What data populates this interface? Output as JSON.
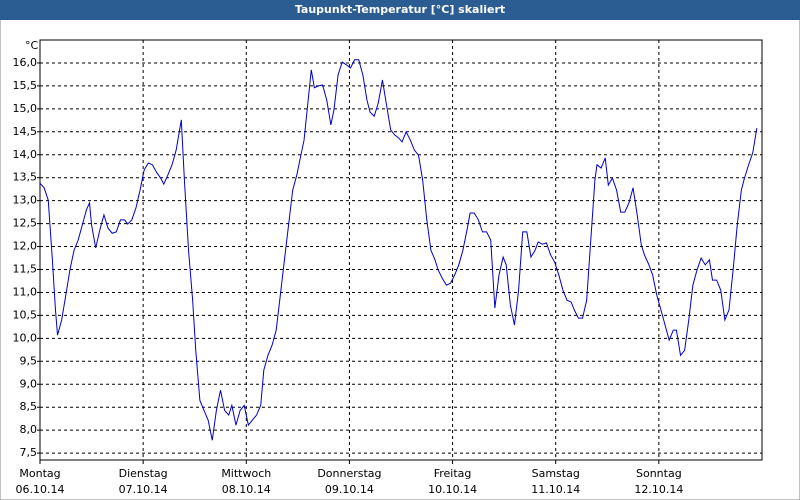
{
  "chart_data": {
    "type": "line",
    "title": "Taupunkt-Temperatur [°C] skaliert",
    "y_unit": "°C",
    "xlim": [
      0,
      7
    ],
    "ylim": [
      7.35,
      16.5
    ],
    "grid": true,
    "xticks": [
      {
        "value": 0,
        "label": "Montag"
      },
      {
        "value": 1,
        "label": "Dienstag"
      },
      {
        "value": 2,
        "label": "Mittwoch"
      },
      {
        "value": 3,
        "label": "Donnerstag"
      },
      {
        "value": 4,
        "label": "Freitag"
      },
      {
        "value": 5,
        "label": "Samstag"
      },
      {
        "value": 6,
        "label": "Sonntag"
      }
    ],
    "xtick_dates": [
      "06.10.14",
      "07.10.14",
      "08.10.14",
      "09.10.14",
      "10.10.14",
      "11.10.14",
      "12.10.14"
    ],
    "yticks": [
      {
        "value": 7.5,
        "label": "7,5"
      },
      {
        "value": 8,
        "label": "8,0"
      },
      {
        "value": 8.5,
        "label": "8,5"
      },
      {
        "value": 9,
        "label": "9,0"
      },
      {
        "value": 9.5,
        "label": "9,5"
      },
      {
        "value": 10,
        "label": "10,0"
      },
      {
        "value": 10.5,
        "label": "10,5"
      },
      {
        "value": 11,
        "label": "11,0"
      },
      {
        "value": 11.5,
        "label": "11,5"
      },
      {
        "value": 12,
        "label": "12,0"
      },
      {
        "value": 12.5,
        "label": "12,5"
      },
      {
        "value": 13,
        "label": "13,0"
      },
      {
        "value": 13.5,
        "label": "13,5"
      },
      {
        "value": 14,
        "label": "14,0"
      },
      {
        "value": 14.5,
        "label": "14,5"
      },
      {
        "value": 15,
        "label": "15,0"
      },
      {
        "value": 15.5,
        "label": "15,5"
      },
      {
        "value": 16,
        "label": "16,0"
      }
    ],
    "x": [
      0.0,
      0.04,
      0.08,
      0.12,
      0.15,
      0.17,
      0.21,
      0.25,
      0.29,
      0.33,
      0.37,
      0.41,
      0.45,
      0.48,
      0.5,
      0.54,
      0.58,
      0.62,
      0.66,
      0.7,
      0.74,
      0.78,
      0.82,
      0.85,
      0.89,
      0.93,
      0.97,
      1.01,
      1.05,
      1.09,
      1.13,
      1.17,
      1.2,
      1.24,
      1.28,
      1.32,
      1.37,
      1.4,
      1.44,
      1.48,
      1.51,
      1.55,
      1.59,
      1.63,
      1.67,
      1.71,
      1.75,
      1.79,
      1.83,
      1.86,
      1.9,
      1.94,
      1.98,
      2.02,
      2.06,
      2.1,
      2.14,
      2.17,
      2.21,
      2.25,
      2.29,
      2.33,
      2.37,
      2.41,
      2.45,
      2.49,
      2.52,
      2.56,
      2.6,
      2.63,
      2.66,
      2.7,
      2.74,
      2.78,
      2.82,
      2.85,
      2.89,
      2.93,
      2.97,
      3.01,
      3.05,
      3.09,
      3.13,
      3.17,
      3.2,
      3.24,
      3.28,
      3.32,
      3.36,
      3.4,
      3.44,
      3.48,
      3.51,
      3.55,
      3.59,
      3.63,
      3.67,
      3.71,
      3.75,
      3.79,
      3.83,
      3.86,
      3.9,
      3.94,
      3.98,
      4.02,
      4.06,
      4.1,
      4.14,
      4.17,
      4.21,
      4.25,
      4.29,
      4.33,
      4.37,
      4.41,
      4.45,
      4.49,
      4.52,
      4.56,
      4.6,
      4.64,
      4.68,
      4.72,
      4.76,
      4.8,
      4.83,
      4.87,
      4.91,
      4.95,
      4.99,
      5.03,
      5.07,
      5.11,
      5.15,
      5.18,
      5.22,
      5.26,
      5.3,
      5.34,
      5.38,
      5.4,
      5.44,
      5.48,
      5.51,
      5.55,
      5.59,
      5.63,
      5.67,
      5.71,
      5.75,
      5.79,
      5.83,
      5.86,
      5.9,
      5.94,
      5.98,
      6.02,
      6.06,
      6.1,
      6.14,
      6.17,
      6.21,
      6.25,
      6.29,
      6.33,
      6.37,
      6.41,
      6.45,
      6.49,
      6.52,
      6.56,
      6.6,
      6.64,
      6.68,
      6.72,
      6.76,
      6.8,
      6.83,
      6.87,
      6.91,
      6.95
    ],
    "series": [
      {
        "name": "Taupunkt",
        "color": "#0000cc",
        "values": [
          13.38,
          13.28,
          13.01,
          11.71,
          10.62,
          10.07,
          10.4,
          10.94,
          11.49,
          11.92,
          12.14,
          12.47,
          12.8,
          12.95,
          12.47,
          11.97,
          12.36,
          12.69,
          12.4,
          12.29,
          12.32,
          12.58,
          12.58,
          12.49,
          12.58,
          12.84,
          13.23,
          13.67,
          13.82,
          13.78,
          13.62,
          13.49,
          13.36,
          13.56,
          13.78,
          14.1,
          14.76,
          13.45,
          11.92,
          10.83,
          9.74,
          8.65,
          8.43,
          8.22,
          7.78,
          8.43,
          8.87,
          8.43,
          8.33,
          8.54,
          8.11,
          8.43,
          8.54,
          8.11,
          8.22,
          8.33,
          8.54,
          9.31,
          9.63,
          9.85,
          10.18,
          10.94,
          11.71,
          12.47,
          13.23,
          13.56,
          13.89,
          14.32,
          15.19,
          15.85,
          15.46,
          15.5,
          15.52,
          15.19,
          14.65,
          14.98,
          15.74,
          16.02,
          15.96,
          15.89,
          16.07,
          16.07,
          15.74,
          15.19,
          14.93,
          14.84,
          15.13,
          15.63,
          15.08,
          14.54,
          14.43,
          14.36,
          14.28,
          14.5,
          14.32,
          14.1,
          13.99,
          13.45,
          12.58,
          11.92,
          11.71,
          11.49,
          11.31,
          11.16,
          11.2,
          11.38,
          11.6,
          11.92,
          12.36,
          12.73,
          12.73,
          12.58,
          12.32,
          12.32,
          12.14,
          10.66,
          11.38,
          11.77,
          11.6,
          10.73,
          10.29,
          11.05,
          12.32,
          12.32,
          11.77,
          11.92,
          12.1,
          12.05,
          12.08,
          11.82,
          11.66,
          11.38,
          11.05,
          10.83,
          10.79,
          10.62,
          10.44,
          10.44,
          10.83,
          12.14,
          13.45,
          13.78,
          13.71,
          13.93,
          13.34,
          13.49,
          13.23,
          12.75,
          12.75,
          12.95,
          13.28,
          12.69,
          12.03,
          11.82,
          11.62,
          11.38,
          10.94,
          10.62,
          10.29,
          9.96,
          10.18,
          10.18,
          9.63,
          9.74,
          10.4,
          11.16,
          11.49,
          11.75,
          11.6,
          11.71,
          11.27,
          11.27,
          11.05,
          10.4,
          10.62,
          11.49,
          12.47,
          13.23,
          13.49,
          13.78,
          14.04,
          14.58
        ]
      }
    ]
  }
}
